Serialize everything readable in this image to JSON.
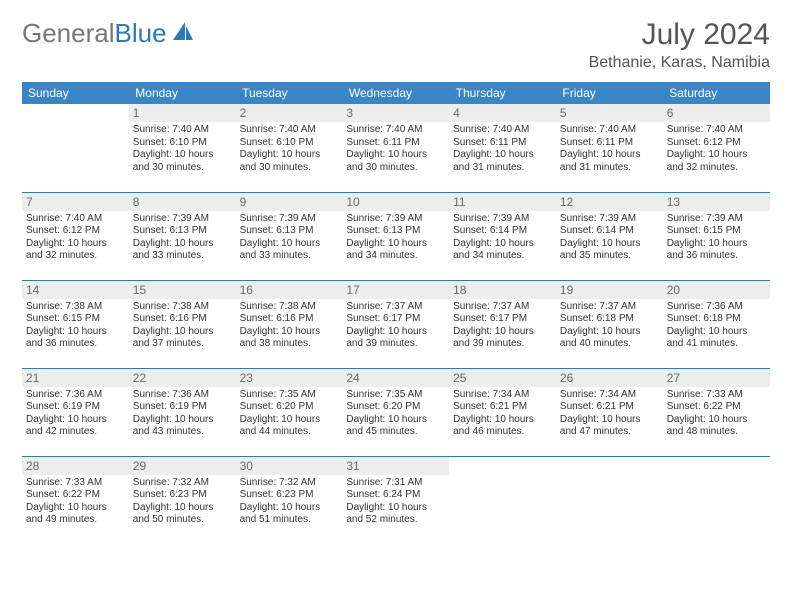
{
  "header": {
    "logo_general": "General",
    "logo_blue": "Blue",
    "month": "July 2024",
    "location": "Bethanie, Karas, Namibia"
  },
  "colors": {
    "header_bar": "#3a85c6",
    "rule": "#2f79b8",
    "date_bg": "#eceded",
    "text": "#333333"
  },
  "daynames": [
    "Sunday",
    "Monday",
    "Tuesday",
    "Wednesday",
    "Thursday",
    "Friday",
    "Saturday"
  ],
  "weeks": [
    [
      null,
      {
        "d": "1",
        "sr": "7:40 AM",
        "ss": "6:10 PM",
        "dl": "10 hours and 30 minutes."
      },
      {
        "d": "2",
        "sr": "7:40 AM",
        "ss": "6:10 PM",
        "dl": "10 hours and 30 minutes."
      },
      {
        "d": "3",
        "sr": "7:40 AM",
        "ss": "6:11 PM",
        "dl": "10 hours and 30 minutes."
      },
      {
        "d": "4",
        "sr": "7:40 AM",
        "ss": "6:11 PM",
        "dl": "10 hours and 31 minutes."
      },
      {
        "d": "5",
        "sr": "7:40 AM",
        "ss": "6:11 PM",
        "dl": "10 hours and 31 minutes."
      },
      {
        "d": "6",
        "sr": "7:40 AM",
        "ss": "6:12 PM",
        "dl": "10 hours and 32 minutes."
      }
    ],
    [
      {
        "d": "7",
        "sr": "7:40 AM",
        "ss": "6:12 PM",
        "dl": "10 hours and 32 minutes."
      },
      {
        "d": "8",
        "sr": "7:39 AM",
        "ss": "6:13 PM",
        "dl": "10 hours and 33 minutes."
      },
      {
        "d": "9",
        "sr": "7:39 AM",
        "ss": "6:13 PM",
        "dl": "10 hours and 33 minutes."
      },
      {
        "d": "10",
        "sr": "7:39 AM",
        "ss": "6:13 PM",
        "dl": "10 hours and 34 minutes."
      },
      {
        "d": "11",
        "sr": "7:39 AM",
        "ss": "6:14 PM",
        "dl": "10 hours and 34 minutes."
      },
      {
        "d": "12",
        "sr": "7:39 AM",
        "ss": "6:14 PM",
        "dl": "10 hours and 35 minutes."
      },
      {
        "d": "13",
        "sr": "7:39 AM",
        "ss": "6:15 PM",
        "dl": "10 hours and 36 minutes."
      }
    ],
    [
      {
        "d": "14",
        "sr": "7:38 AM",
        "ss": "6:15 PM",
        "dl": "10 hours and 36 minutes."
      },
      {
        "d": "15",
        "sr": "7:38 AM",
        "ss": "6:16 PM",
        "dl": "10 hours and 37 minutes."
      },
      {
        "d": "16",
        "sr": "7:38 AM",
        "ss": "6:16 PM",
        "dl": "10 hours and 38 minutes."
      },
      {
        "d": "17",
        "sr": "7:37 AM",
        "ss": "6:17 PM",
        "dl": "10 hours and 39 minutes."
      },
      {
        "d": "18",
        "sr": "7:37 AM",
        "ss": "6:17 PM",
        "dl": "10 hours and 39 minutes."
      },
      {
        "d": "19",
        "sr": "7:37 AM",
        "ss": "6:18 PM",
        "dl": "10 hours and 40 minutes."
      },
      {
        "d": "20",
        "sr": "7:36 AM",
        "ss": "6:18 PM",
        "dl": "10 hours and 41 minutes."
      }
    ],
    [
      {
        "d": "21",
        "sr": "7:36 AM",
        "ss": "6:19 PM",
        "dl": "10 hours and 42 minutes."
      },
      {
        "d": "22",
        "sr": "7:36 AM",
        "ss": "6:19 PM",
        "dl": "10 hours and 43 minutes."
      },
      {
        "d": "23",
        "sr": "7:35 AM",
        "ss": "6:20 PM",
        "dl": "10 hours and 44 minutes."
      },
      {
        "d": "24",
        "sr": "7:35 AM",
        "ss": "6:20 PM",
        "dl": "10 hours and 45 minutes."
      },
      {
        "d": "25",
        "sr": "7:34 AM",
        "ss": "6:21 PM",
        "dl": "10 hours and 46 minutes."
      },
      {
        "d": "26",
        "sr": "7:34 AM",
        "ss": "6:21 PM",
        "dl": "10 hours and 47 minutes."
      },
      {
        "d": "27",
        "sr": "7:33 AM",
        "ss": "6:22 PM",
        "dl": "10 hours and 48 minutes."
      }
    ],
    [
      {
        "d": "28",
        "sr": "7:33 AM",
        "ss": "6:22 PM",
        "dl": "10 hours and 49 minutes."
      },
      {
        "d": "29",
        "sr": "7:32 AM",
        "ss": "6:23 PM",
        "dl": "10 hours and 50 minutes."
      },
      {
        "d": "30",
        "sr": "7:32 AM",
        "ss": "6:23 PM",
        "dl": "10 hours and 51 minutes."
      },
      {
        "d": "31",
        "sr": "7:31 AM",
        "ss": "6:24 PM",
        "dl": "10 hours and 52 minutes."
      },
      null,
      null,
      null
    ]
  ],
  "labels": {
    "sunrise": "Sunrise: ",
    "sunset": "Sunset: ",
    "daylight": "Daylight: "
  }
}
